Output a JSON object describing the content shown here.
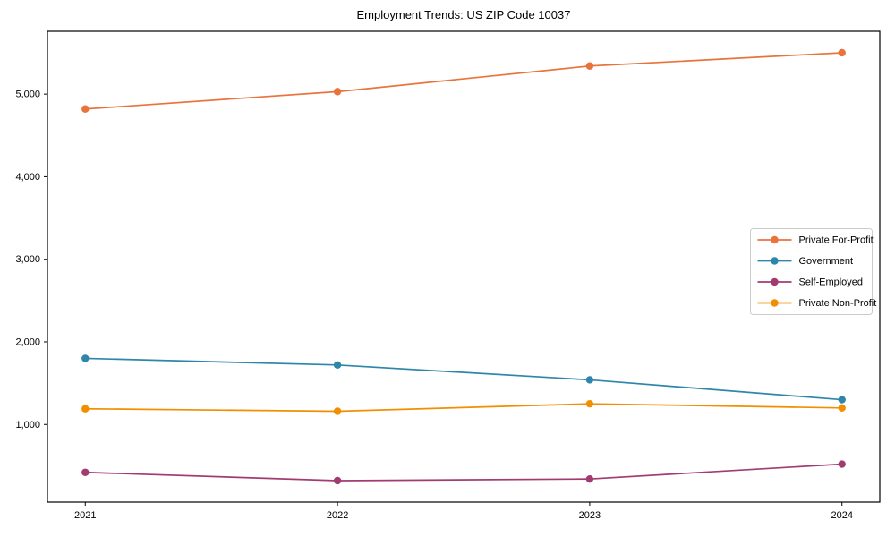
{
  "chart_data": {
    "type": "line",
    "title": "Employment Trends: US ZIP Code 10037",
    "categories": [
      "2021",
      "2022",
      "2023",
      "2024"
    ],
    "series": [
      {
        "name": "Private For-Profit",
        "color": "#E8743B",
        "values": [
          4820,
          5030,
          5340,
          5500
        ]
      },
      {
        "name": "Government",
        "color": "#2E86AB",
        "values": [
          1800,
          1720,
          1540,
          1300
        ]
      },
      {
        "name": "Self-Employed",
        "color": "#A23B72",
        "values": [
          420,
          320,
          340,
          520
        ]
      },
      {
        "name": "Private Non-Profit",
        "color": "#F18F01",
        "values": [
          1190,
          1160,
          1250,
          1200
        ]
      }
    ],
    "yticks": [
      1000,
      2000,
      3000,
      4000,
      5000
    ],
    "ytick_labels": [
      "1,000",
      "2,000",
      "3,000",
      "4,000",
      "5,000"
    ],
    "ylim": [
      60,
      5760
    ],
    "xlabel": "",
    "ylabel": "",
    "grid": false,
    "legend_position": "center-right",
    "marker": "circle",
    "axis_color": "#000000",
    "plot_background": "#ffffff",
    "legend_border_color": "#cccccc"
  }
}
